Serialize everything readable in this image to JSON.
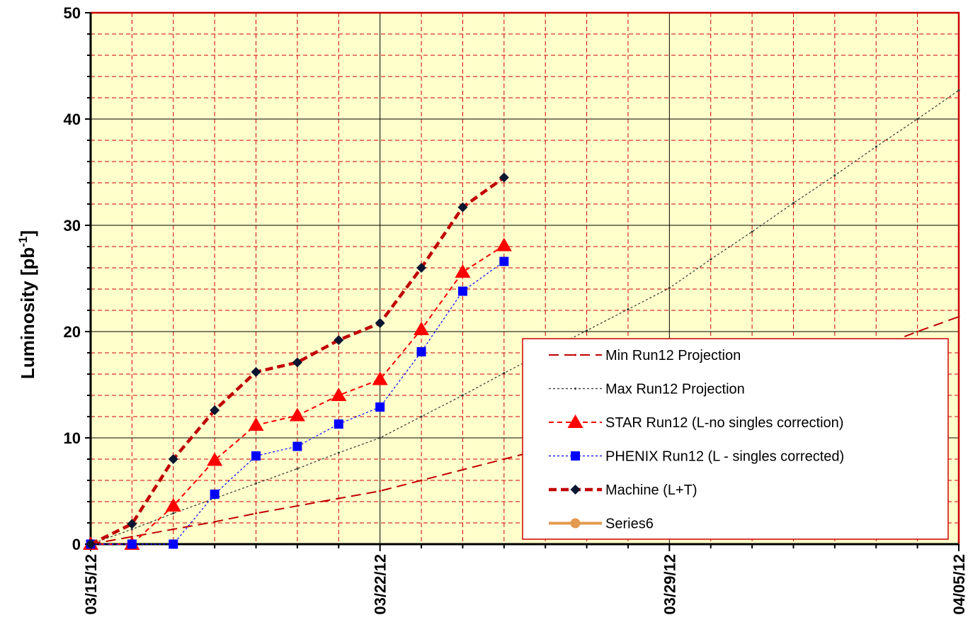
{
  "chart_data": {
    "type": "line",
    "ylabel": "Luminosity [pb",
    "ylabel_sup": "-1",
    "ylabel_close": "]",
    "xlabel": "",
    "x_range": [
      "03/15/12",
      "04/05/12"
    ],
    "ylim": [
      0,
      50
    ],
    "y_ticks": [
      "0",
      "10",
      "20",
      "30",
      "40",
      "50"
    ],
    "x_ticks": [
      "03/15/12",
      "03/22/12",
      "03/29/12",
      "04/05/12"
    ],
    "grid": true,
    "legend_position": "bottom-right",
    "colors": {
      "plot_bg": "#FFFFCC",
      "frame": "#CC0000",
      "grid_major": "#000000",
      "grid_minor": "#CC0000"
    },
    "series": [
      {
        "name": "Min Run12 Projection",
        "color": "#C00000",
        "style": "dashed-long",
        "marker": "dot",
        "points": [
          [
            "03/15/12",
            0
          ],
          [
            "03/16/12",
            0.7
          ],
          [
            "03/17/12",
            1.4
          ],
          [
            "03/18/12",
            2.1
          ],
          [
            "03/19/12",
            2.9
          ],
          [
            "03/20/12",
            3.6
          ],
          [
            "03/21/12",
            4.3
          ],
          [
            "03/22/12",
            5.0
          ],
          [
            "03/23/12",
            6.0
          ],
          [
            "03/24/12",
            7.0
          ],
          [
            "03/25/12",
            8.0
          ],
          [
            "03/26/12",
            9.0
          ],
          [
            "03/27/12",
            10.1
          ],
          [
            "03/28/12",
            11.2
          ],
          [
            "03/29/12",
            12.3
          ],
          [
            "03/30/12",
            13.4
          ],
          [
            "03/31/12",
            14.6
          ],
          [
            "04/01/12",
            15.8
          ],
          [
            "04/02/12",
            17.1
          ],
          [
            "04/03/12",
            18.5
          ],
          [
            "04/04/12",
            20.0
          ],
          [
            "04/05/12",
            21.4
          ]
        ]
      },
      {
        "name": "Max Run12 Projection",
        "color": "#333333",
        "style": "dotted",
        "marker": "dot",
        "points": [
          [
            "03/15/12",
            0
          ],
          [
            "03/16/12",
            1.4
          ],
          [
            "03/17/12",
            2.9
          ],
          [
            "03/18/12",
            4.3
          ],
          [
            "03/19/12",
            5.7
          ],
          [
            "03/20/12",
            7.1
          ],
          [
            "03/21/12",
            8.6
          ],
          [
            "03/22/12",
            10.0
          ],
          [
            "03/23/12",
            12.0
          ],
          [
            "03/24/12",
            14.0
          ],
          [
            "03/25/12",
            16.1
          ],
          [
            "03/26/12",
            18.1
          ],
          [
            "03/27/12",
            20.1
          ],
          [
            "03/28/12",
            22.1
          ],
          [
            "03/29/12",
            24.1
          ],
          [
            "03/30/12",
            26.8
          ],
          [
            "03/31/12",
            29.4
          ],
          [
            "04/01/12",
            32.1
          ],
          [
            "04/02/12",
            34.7
          ],
          [
            "04/03/12",
            37.4
          ],
          [
            "04/04/12",
            40.0
          ],
          [
            "04/05/12",
            42.7
          ]
        ]
      },
      {
        "name": "STAR Run12 (L-no singles correction)",
        "color": "#FF0000",
        "style": "dashed",
        "marker": "triangle",
        "points": [
          [
            "03/15/12",
            0
          ],
          [
            "03/16/12",
            0
          ],
          [
            "03/17/12",
            3.6
          ],
          [
            "03/18/12",
            7.9
          ],
          [
            "03/19/12",
            11.2
          ],
          [
            "03/20/12",
            12.1
          ],
          [
            "03/21/12",
            14.0
          ],
          [
            "03/22/12",
            15.5
          ],
          [
            "03/23/12",
            20.2
          ],
          [
            "03/24/12",
            25.6
          ],
          [
            "03/25/12",
            28.1
          ]
        ]
      },
      {
        "name": "PHENIX Run12 (L - singles corrected)",
        "color": "#0000FF",
        "style": "dotted",
        "marker": "square",
        "points": [
          [
            "03/15/12",
            0
          ],
          [
            "03/16/12",
            0
          ],
          [
            "03/17/12",
            0
          ],
          [
            "03/18/12",
            4.7
          ],
          [
            "03/19/12",
            8.3
          ],
          [
            "03/20/12",
            9.2
          ],
          [
            "03/21/12",
            11.3
          ],
          [
            "03/22/12",
            12.9
          ],
          [
            "03/23/12",
            18.1
          ],
          [
            "03/24/12",
            23.8
          ],
          [
            "03/25/12",
            26.6
          ]
        ]
      },
      {
        "name": "Machine (L+T)",
        "color": "#C00000",
        "style": "dashed-thick",
        "marker": "diamond",
        "points": [
          [
            "03/15/12",
            0
          ],
          [
            "03/16/12",
            1.9
          ],
          [
            "03/17/12",
            8.0
          ],
          [
            "03/18/12",
            12.6
          ],
          [
            "03/19/12",
            16.2
          ],
          [
            "03/20/12",
            17.1
          ],
          [
            "03/21/12",
            19.2
          ],
          [
            "03/22/12",
            20.8
          ],
          [
            "03/23/12",
            26.0
          ],
          [
            "03/24/12",
            31.7
          ],
          [
            "03/25/12",
            34.5
          ]
        ]
      },
      {
        "name": "Series6",
        "color": "#E39A4F",
        "style": "solid",
        "marker": "circle",
        "points": []
      }
    ]
  }
}
